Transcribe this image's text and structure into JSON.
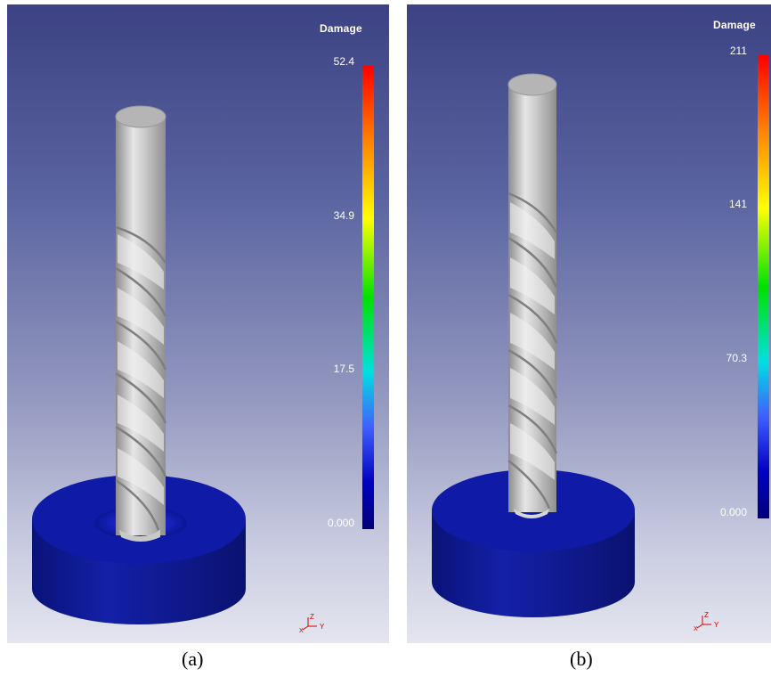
{
  "panels": [
    {
      "legend_title": "Damage",
      "ticks": [
        "52.4",
        "34.9",
        "17.5",
        "0.000"
      ],
      "caption": "(a)",
      "axis_labels": {
        "z": "Z",
        "y": "Y",
        "x": "X"
      }
    },
    {
      "legend_title": "Damage",
      "ticks": [
        "211",
        "141",
        "70.3",
        "0.000"
      ],
      "caption": "(b)",
      "axis_labels": {
        "z": "Z",
        "y": "Y",
        "x": "X"
      }
    }
  ],
  "colors": {
    "background_top": "#3c4283",
    "background_bottom": "#e4e5ef",
    "workpiece": "#0a1490",
    "drill": "#b9b9b9",
    "colorbar": [
      "#ff0000",
      "#ff8000",
      "#ffff00",
      "#00e000",
      "#00e0e0",
      "#4060ff",
      "#00007a"
    ]
  }
}
